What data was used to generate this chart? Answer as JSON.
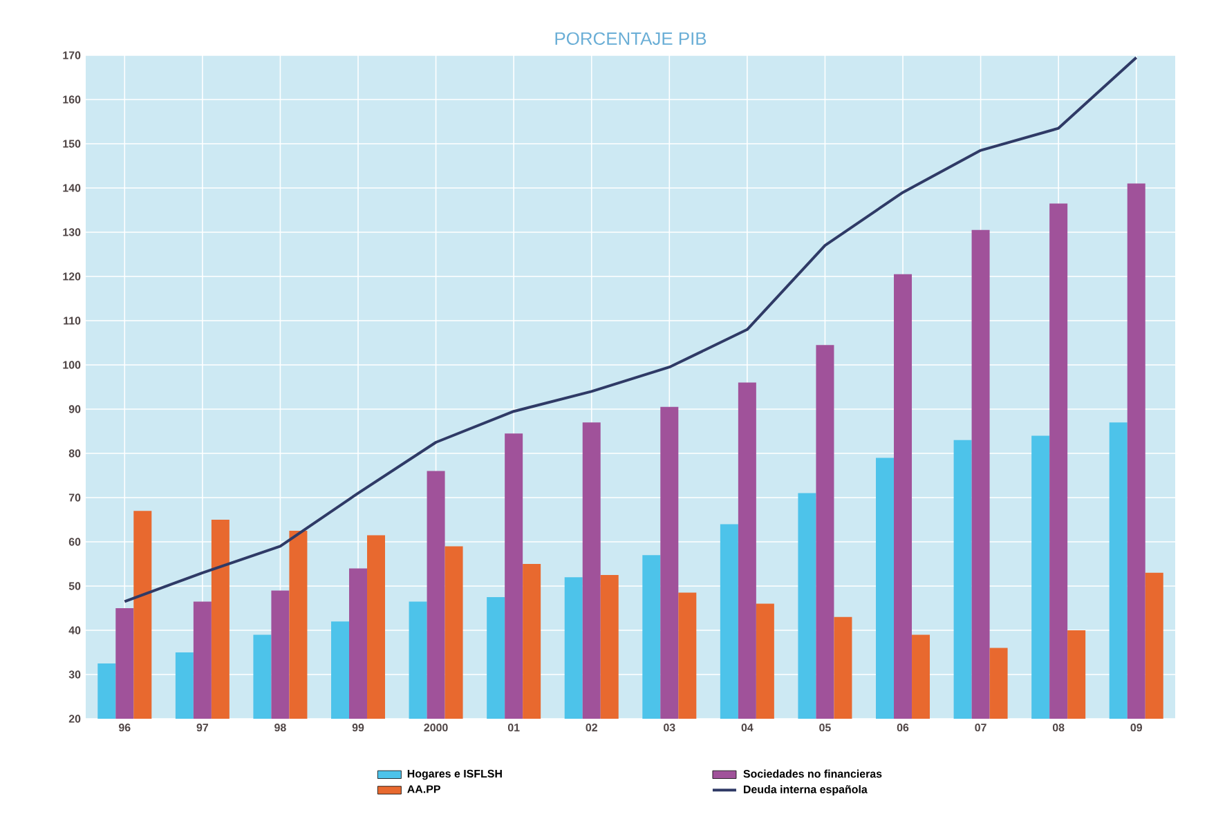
{
  "chart_data": {
    "type": "bar",
    "title": "PORCENTAJE PIB",
    "categories": [
      "96",
      "97",
      "98",
      "99",
      "2000",
      "01",
      "02",
      "03",
      "04",
      "05",
      "06",
      "07",
      "08",
      "09"
    ],
    "series": [
      {
        "name": "Hogares e ISFLSH",
        "color": "#4dc3ea",
        "values": [
          32.5,
          35,
          39,
          42,
          46.5,
          47.5,
          52,
          57,
          64,
          71,
          79,
          83,
          84,
          87
        ]
      },
      {
        "name": "Sociedades no financieras",
        "color": "#a0529a",
        "values": [
          45,
          46.5,
          49,
          54,
          76,
          84.5,
          87,
          90.5,
          96,
          104.5,
          120.5,
          130.5,
          136.5,
          141
        ]
      },
      {
        "name": "AA.PP",
        "color": "#e8692f",
        "values": [
          67,
          65,
          62.5,
          61.5,
          59,
          55,
          52.5,
          48.5,
          46,
          43,
          39,
          36,
          40,
          53
        ]
      },
      {
        "name": "Deuda interna española",
        "type": "line",
        "color": "#2f3a66",
        "values": [
          46.5,
          53,
          59,
          71,
          82.5,
          89.5,
          94,
          99.5,
          108,
          127,
          139,
          148.5,
          153.5,
          169.5
        ]
      }
    ],
    "ylim": [
      20,
      170
    ],
    "yticks": [
      20,
      30,
      40,
      50,
      60,
      70,
      80,
      90,
      100,
      110,
      120,
      130,
      140,
      150,
      160,
      170
    ],
    "grid": true,
    "legend": "bottom"
  }
}
